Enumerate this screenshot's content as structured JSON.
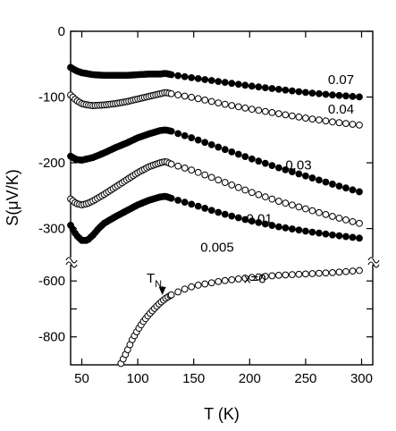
{
  "chart_data": {
    "type": "scatter",
    "xlabel": "T (K)",
    "ylabel": "S(μV/K)",
    "xlim": [
      40,
      310
    ],
    "upper_ylim": [
      -340,
      0
    ],
    "lower_ylim": [
      -900,
      -545
    ],
    "x_ticks": [
      50,
      100,
      150,
      200,
      250,
      300
    ],
    "x_tick_labels": [
      "50",
      "100",
      "150",
      "200",
      "250",
      "300"
    ],
    "upper_y_ticks": [
      0,
      -100,
      -200,
      -300
    ],
    "upper_y_tick_labels": [
      "0",
      "-100",
      "-200",
      "-300"
    ],
    "lower_y_ticks": [
      -600,
      -700,
      -800
    ],
    "lower_y_tick_labels": [
      "-600",
      "",
      "-800"
    ],
    "axis_break": true,
    "grid": false,
    "annotation": {
      "text": "T",
      "subscript": "N",
      "x": 122,
      "y": -650
    },
    "series": [
      {
        "name": "0.07",
        "marker": "filled",
        "panel": "upper",
        "x": [
          40,
          45,
          50,
          60,
          70,
          80,
          90,
          100,
          110,
          120,
          125,
          130,
          150,
          175,
          200,
          225,
          250,
          275,
          300
        ],
        "y": [
          -55,
          -60,
          -63,
          -66,
          -67,
          -67,
          -67,
          -66,
          -65,
          -65,
          -64,
          -66,
          -71,
          -77,
          -83,
          -88,
          -93,
          -97,
          -100
        ]
      },
      {
        "name": "0.04",
        "marker": "open",
        "panel": "upper",
        "x": [
          40,
          45,
          50,
          55,
          60,
          70,
          80,
          90,
          100,
          110,
          120,
          125,
          130,
          150,
          175,
          200,
          225,
          250,
          275,
          300
        ],
        "y": [
          -97,
          -105,
          -110,
          -112,
          -113,
          -112,
          -110,
          -107,
          -103,
          -99,
          -95,
          -93,
          -95,
          -101,
          -110,
          -118,
          -125,
          -132,
          -138,
          -143
        ]
      },
      {
        "name": "0.03",
        "marker": "filled",
        "panel": "upper",
        "x": [
          40,
          45,
          50,
          60,
          70,
          80,
          90,
          100,
          110,
          120,
          125,
          130,
          135,
          150,
          175,
          200,
          225,
          250,
          275,
          300
        ],
        "y": [
          -190,
          -195,
          -196,
          -192,
          -185,
          -177,
          -170,
          -162,
          -156,
          -151,
          -150,
          -152,
          -155,
          -163,
          -178,
          -193,
          -207,
          -220,
          -233,
          -245
        ]
      },
      {
        "name": "0.01",
        "marker": "open",
        "panel": "upper",
        "x": [
          40,
          45,
          50,
          55,
          60,
          70,
          80,
          90,
          100,
          110,
          120,
          125,
          130,
          150,
          175,
          200,
          225,
          250,
          275,
          300
        ],
        "y": [
          -255,
          -262,
          -264,
          -262,
          -258,
          -248,
          -237,
          -226,
          -215,
          -206,
          -200,
          -198,
          -202,
          -212,
          -228,
          -244,
          -258,
          -270,
          -282,
          -293
        ]
      },
      {
        "name": "0.005",
        "marker": "filled",
        "panel": "upper",
        "x": [
          40,
          45,
          50,
          55,
          60,
          65,
          70,
          80,
          90,
          100,
          110,
          120,
          125,
          130,
          150,
          175,
          200,
          225,
          250,
          275,
          300
        ],
        "y": [
          -295,
          -310,
          -318,
          -318,
          -310,
          -300,
          -292,
          -282,
          -273,
          -264,
          -257,
          -252,
          -251,
          -254,
          -264,
          -277,
          -288,
          -297,
          -304,
          -310,
          -315
        ]
      },
      {
        "name": "x=0",
        "marker": "open",
        "panel": "lower",
        "x": [
          85,
          90,
          95,
          100,
          105,
          110,
          115,
          120,
          125,
          130,
          140,
          150,
          175,
          200,
          225,
          250,
          275,
          300
        ],
        "y": [
          -895,
          -855,
          -810,
          -775,
          -745,
          -720,
          -698,
          -678,
          -662,
          -650,
          -632,
          -618,
          -600,
          -588,
          -580,
          -575,
          -570,
          -562
        ]
      }
    ],
    "series_labels": [
      {
        "text": "0.07",
        "x": 270,
        "y": -80
      },
      {
        "text": "0.04",
        "x": 270,
        "y": -125
      },
      {
        "text": "0.03",
        "x": 232,
        "y": -210
      },
      {
        "text": "0.01",
        "x": 197,
        "y": -292
      },
      {
        "text": "0.005",
        "x": 156,
        "y": -335
      },
      {
        "text": "x=0",
        "x": 195,
        "y": -608
      }
    ]
  }
}
